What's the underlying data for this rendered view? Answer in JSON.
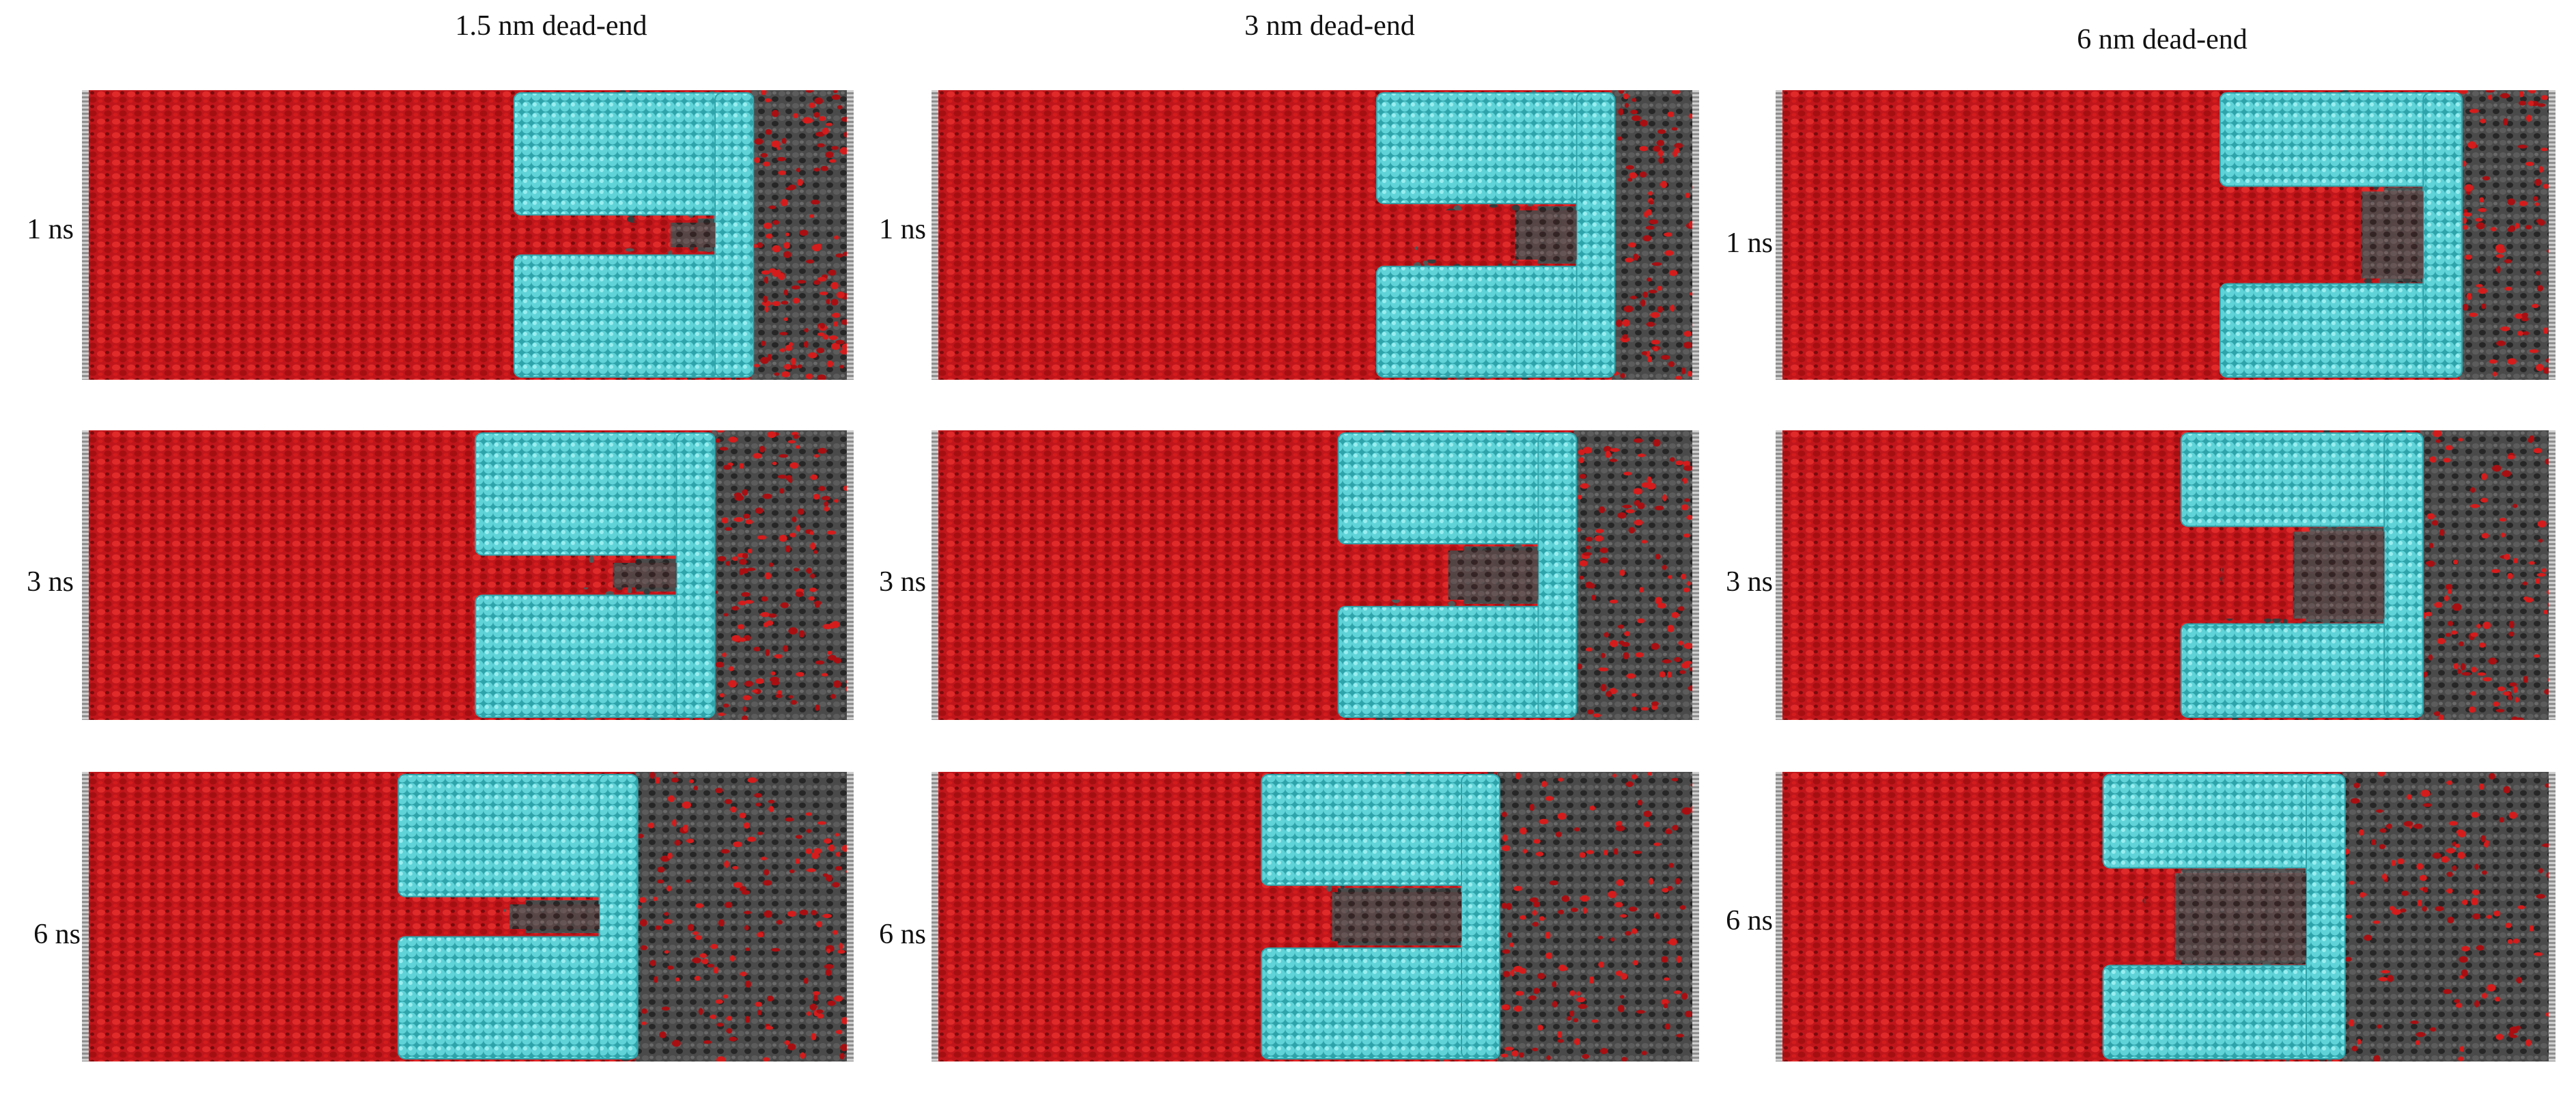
{
  "columns": [
    {
      "title": "1.5 nm dead-end",
      "width_nm": 1.5
    },
    {
      "title": "3 nm dead-end",
      "width_nm": 3
    },
    {
      "title": "6 nm dead-end",
      "width_nm": 6
    }
  ],
  "rows": [
    {
      "label": "1 ns",
      "time_ns": 1
    },
    {
      "label": "3 ns",
      "time_ns": 3
    },
    {
      "label": "6 ns",
      "time_ns": 6
    }
  ],
  "colors": {
    "red_phase": "#c0161b",
    "red_phase_dark": "#7a0a0c",
    "gray_phase": "#4a4a4a",
    "gray_phase_dark": "#262626",
    "solid": "#5fd3d8",
    "solid_light": "#9aeef0",
    "solid_dark": "#2fa3aa",
    "wall": "#b8b8b8"
  }
}
